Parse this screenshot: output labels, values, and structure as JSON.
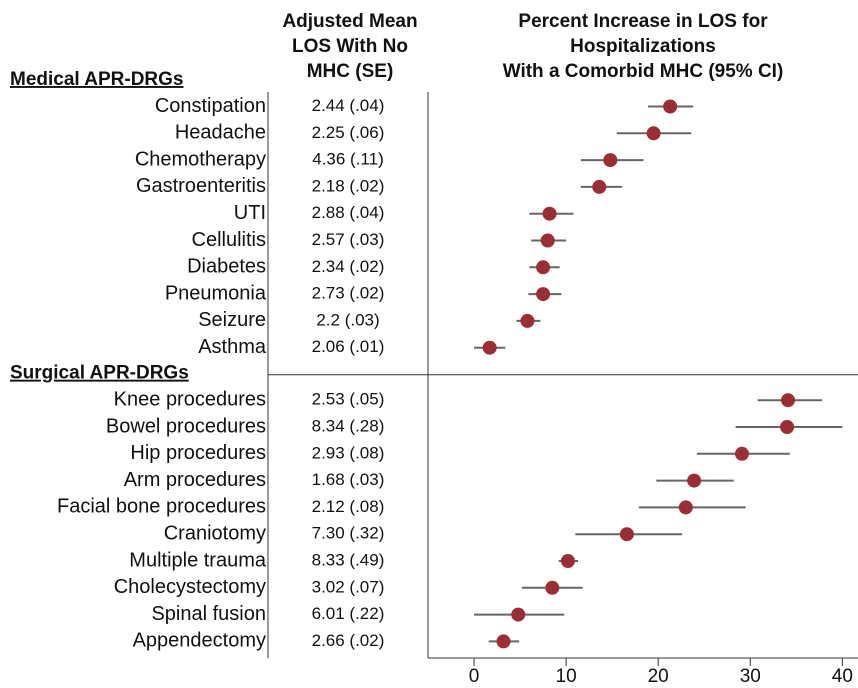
{
  "chart_data": {
    "type": "forest",
    "column_header": [
      "Adjusted Mean",
      "LOS With No",
      "MHC (SE)"
    ],
    "plot_header": [
      "Percent Increase in LOS for",
      "Hospitalizations",
      "With a Comorbid MHC (95% CI)"
    ],
    "marker_color": "#9b2d35",
    "ci_color": "#666666",
    "xlim": [
      -5,
      41.7
    ],
    "xticks": [
      0,
      10,
      20,
      30,
      40
    ],
    "groups": [
      {
        "label": "Medical APR-DRGs",
        "rows": [
          {
            "name": "Constipation",
            "los": "2.44 (.04)",
            "estimate": 21.3,
            "lower": 18.9,
            "upper": 23.8
          },
          {
            "name": "Headache",
            "los": "2.25 (.06)",
            "estimate": 19.5,
            "lower": 15.5,
            "upper": 23.6
          },
          {
            "name": "Chemotherapy",
            "los": "4.36 (.11)",
            "estimate": 14.8,
            "lower": 11.6,
            "upper": 18.4
          },
          {
            "name": "Gastroenteritis",
            "los": "2.18 (.02)",
            "estimate": 13.6,
            "lower": 11.6,
            "upper": 16.1
          },
          {
            "name": "UTI",
            "los": "2.88 (.04)",
            "estimate": 8.2,
            "lower": 6.0,
            "upper": 10.8
          },
          {
            "name": "Cellulitis",
            "los": "2.57 (.03)",
            "estimate": 8.0,
            "lower": 6.2,
            "upper": 10.0
          },
          {
            "name": "Diabetes",
            "los": "2.34 (.02)",
            "estimate": 7.5,
            "lower": 6.0,
            "upper": 9.3
          },
          {
            "name": "Pneumonia",
            "los": "2.73 (.02)",
            "estimate": 7.5,
            "lower": 5.9,
            "upper": 9.5
          },
          {
            "name": "Seizure",
            "los": "2.2 (.03)",
            "estimate": 5.8,
            "lower": 4.6,
            "upper": 7.2
          },
          {
            "name": "Asthma",
            "los": "2.06 (.01)",
            "estimate": 1.7,
            "lower": 0.0,
            "upper": 3.4
          }
        ]
      },
      {
        "label": "Surgical APR-DRGs",
        "rows": [
          {
            "name": "Knee procedures",
            "los": "2.53 (.05)",
            "estimate": 34.1,
            "lower": 30.8,
            "upper": 37.8
          },
          {
            "name": "Bowel procedures",
            "los": "8.34 (.28)",
            "estimate": 34.0,
            "lower": 28.4,
            "upper": 40.0
          },
          {
            "name": "Hip procedures",
            "los": "2.93 (.08)",
            "estimate": 29.1,
            "lower": 24.2,
            "upper": 34.3
          },
          {
            "name": "Arm procedures",
            "los": "1.68 (.03)",
            "estimate": 23.9,
            "lower": 19.8,
            "upper": 28.2
          },
          {
            "name": "Facial bone procedures",
            "los": "2.12 (.08)",
            "estimate": 23.0,
            "lower": 17.9,
            "upper": 29.5
          },
          {
            "name": "Craniotomy",
            "los": "7.30 (.32)",
            "estimate": 16.6,
            "lower": 11.0,
            "upper": 22.6
          },
          {
            "name": "Multiple trauma",
            "los": "8.33 (.49)",
            "estimate": 10.2,
            "lower": 9.2,
            "upper": 11.3
          },
          {
            "name": "Cholecystectomy",
            "los": "3.02 (.07)",
            "estimate": 8.5,
            "lower": 5.2,
            "upper": 11.8
          },
          {
            "name": "Spinal fusion",
            "los": "6.01 (.22)",
            "estimate": 4.8,
            "lower": 0.0,
            "upper": 9.8
          },
          {
            "name": "Appendectomy",
            "los": "2.66 (.02)",
            "estimate": 3.2,
            "lower": 1.6,
            "upper": 4.9
          }
        ]
      }
    ]
  }
}
